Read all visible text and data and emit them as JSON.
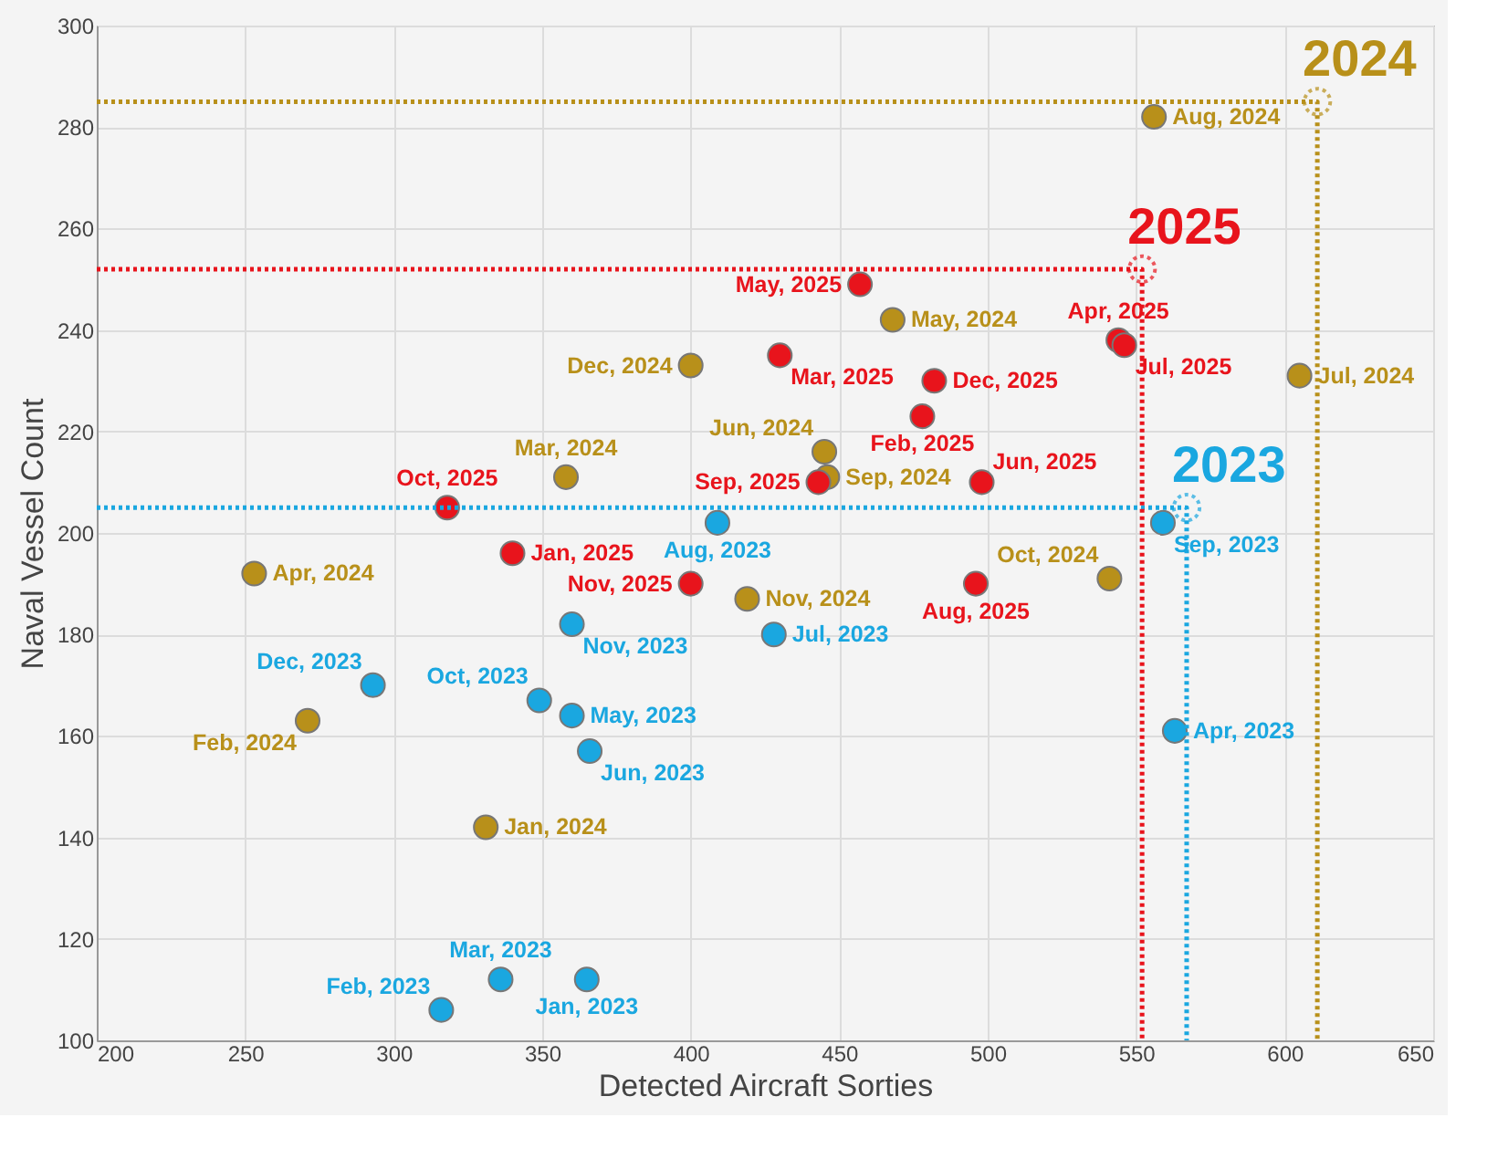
{
  "chart_data": {
    "type": "scatter",
    "xlabel": "Detected Aircraft Sorties",
    "ylabel": "Naval Vessel Count",
    "xlim": [
      200,
      650
    ],
    "xticks": [
      200,
      250,
      300,
      350,
      400,
      450,
      500,
      550,
      600,
      650
    ],
    "ylim": [
      100,
      300
    ],
    "yticks": [
      100,
      120,
      140,
      160,
      180,
      200,
      220,
      240,
      260,
      280,
      300
    ],
    "grid": true,
    "marker": "circle",
    "series": [
      {
        "color": "#1aa7e0",
        "x": [
          365,
          316,
          336,
          563,
          360,
          366,
          428,
          409,
          559,
          349,
          360,
          293
        ],
        "values": [
          112,
          106,
          112,
          161,
          164,
          157,
          180,
          202,
          202,
          167,
          182,
          170
        ],
        "value_labels": [
          "Jan, 2023",
          "Feb, 2023",
          "Mar, 2023",
          "Apr, 2023",
          "May, 2023",
          "Jun, 2023",
          "Jul, 2023",
          "Aug, 2023",
          "Sep, 2023",
          "Oct, 2023",
          "Nov, 2023",
          "Dec, 2023"
        ]
      },
      {
        "color": "#b8901a",
        "x": [
          331,
          271,
          358,
          253,
          468,
          445,
          605,
          556,
          446,
          541,
          419,
          400
        ],
        "values": [
          142,
          163,
          211,
          192,
          242,
          216,
          231,
          282,
          211,
          191,
          187,
          233
        ],
        "value_labels": [
          "Jan, 2024",
          "Feb, 2024",
          "Mar, 2024",
          "Apr, 2024",
          "May, 2024",
          "Jun, 2024",
          "Jul, 2024",
          "Aug, 2024",
          "Sep, 2024",
          "Oct, 2024",
          "Nov, 2024",
          "Dec, 2024"
        ]
      },
      {
        "color": "#e8141c",
        "x": [
          340,
          478,
          430,
          544,
          457,
          498,
          546,
          496,
          443,
          318,
          400,
          482
        ],
        "values": [
          196,
          223,
          235,
          238,
          249,
          210,
          237,
          190,
          210,
          205,
          190,
          230
        ],
        "value_labels": [
          "Jan, 2025",
          "Feb, 2025",
          "Mar, 2025",
          "Apr, 2025",
          "May, 2025",
          "Jun, 2025",
          "Jul, 2025",
          "Aug, 2025",
          "Sep, 2025",
          "Oct, 2025",
          "Nov, 2025",
          "Dec, 2025"
        ]
      },
      {
        "type": "line",
        "marker": "none",
        "color": "#1aa7e0",
        "x": [
          200,
          567,
          567
        ],
        "values": [
          205,
          205,
          100
        ],
        "line_style": "dotted"
      },
      {
        "type": "line",
        "marker": "none",
        "color": "#b8901a",
        "x": [
          200,
          611,
          611
        ],
        "values": [
          285,
          285,
          100
        ],
        "line_style": "dotted"
      },
      {
        "type": "line",
        "marker": "none",
        "color": "#e8141c",
        "x": [
          200,
          552,
          552
        ],
        "values": [
          252,
          252,
          100
        ],
        "line_style": "dotted"
      },
      {
        "name": "2023",
        "color": "#1aa7e0",
        "x": [
          567
        ],
        "values": [
          205
        ],
        "line_style": "dotted"
      },
      {
        "name": "2024",
        "color": "#b8901a",
        "x": [
          611
        ],
        "values": [
          285
        ],
        "line_style": "dotted"
      },
      {
        "name": "2025",
        "color": "#e8141c",
        "x": [
          552
        ],
        "values": [
          252
        ],
        "line_style": "dotted"
      }
    ]
  }
}
